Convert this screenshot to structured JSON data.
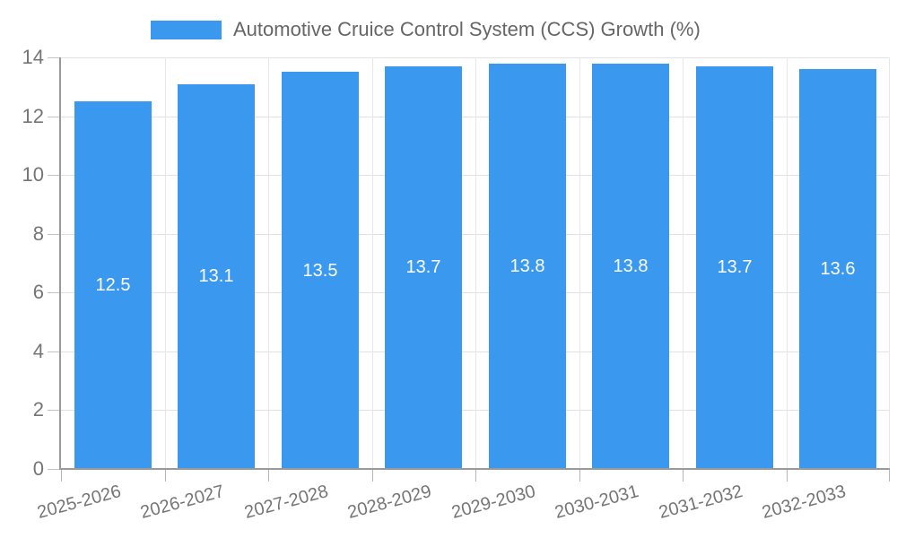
{
  "chart_data": {
    "type": "bar",
    "title": "",
    "legend": {
      "label": "Automotive Cruice Control System (CCS) Growth (%)",
      "position": "top"
    },
    "categories": [
      "2025-2026",
      "2026-2027",
      "2027-2028",
      "2028-2029",
      "2029-2030",
      "2030-2031",
      "2031-2032",
      "2032-2033"
    ],
    "values": [
      12.5,
      13.1,
      13.5,
      13.7,
      13.8,
      13.8,
      13.7,
      13.6
    ],
    "bar_labels": [
      "12.5",
      "13.1",
      "13.5",
      "13.7",
      "13.8",
      "13.8",
      "13.7",
      "13.6"
    ],
    "xlabel": "",
    "ylabel": "",
    "ylim": [
      0,
      14
    ],
    "yticks": [
      0,
      2,
      4,
      6,
      8,
      10,
      12,
      14
    ],
    "grid": true,
    "legend_position": "top"
  },
  "colors": {
    "bar": "#3A99EF",
    "bar_label": "#ffffff",
    "grid": "#e2e2e2",
    "axis": "#9a9a9a",
    "tick_label": "#757575",
    "legend_text": "#666666"
  }
}
